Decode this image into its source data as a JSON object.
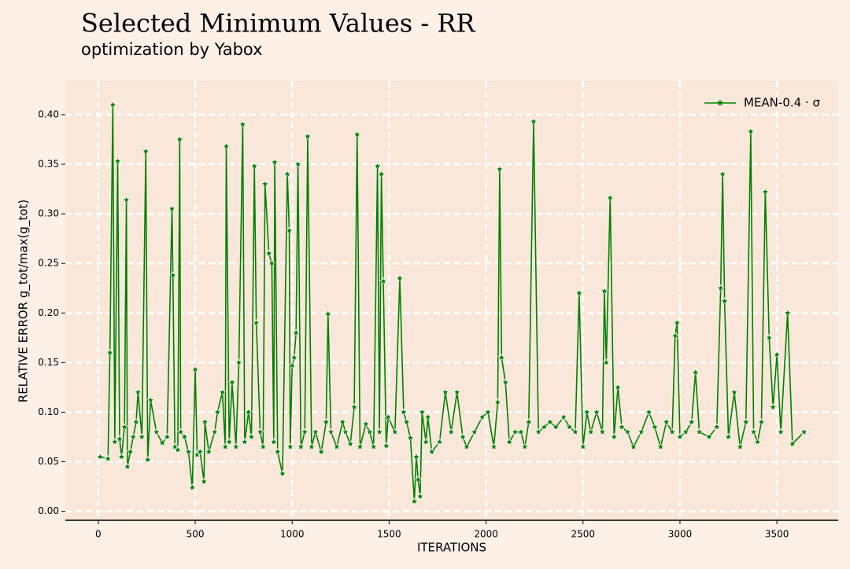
{
  "chart_data": {
    "type": "line",
    "title": "Selected Minimum Values - RR",
    "subtitle": "optimization by Yabox",
    "xlabel": "ITERATIONS",
    "ylabel": "RELATIVE ERROR g_tot/max(g_tot)",
    "legend": "upper right",
    "grid": true,
    "xlim": [
      -170,
      3816
    ],
    "ylim": [
      -0.009,
      0.434
    ],
    "xticks": [
      0,
      500,
      1000,
      1500,
      2000,
      2500,
      3000,
      3500
    ],
    "yticks": [
      {
        "value": 0,
        "label": "0.00"
      },
      {
        "value": 0.05,
        "label": "0.05"
      },
      {
        "value": 0.1,
        "label": "0.10"
      },
      {
        "value": 0.15,
        "label": "0.15"
      },
      {
        "value": 0.2,
        "label": "0.20"
      },
      {
        "value": 0.25,
        "label": "0.25"
      },
      {
        "value": 0.3,
        "label": "0.30"
      },
      {
        "value": 0.35,
        "label": "0.35"
      },
      {
        "value": 0.4,
        "label": "0.40"
      }
    ],
    "x": [
      10,
      50,
      60,
      75,
      85,
      100,
      110,
      120,
      135,
      145,
      150,
      165,
      180,
      195,
      205,
      225,
      245,
      255,
      270,
      300,
      330,
      355,
      380,
      385,
      395,
      410,
      420,
      425,
      445,
      465,
      485,
      500,
      510,
      525,
      545,
      550,
      570,
      600,
      615,
      640,
      655,
      660,
      675,
      690,
      710,
      725,
      745,
      755,
      775,
      790,
      805,
      815,
      835,
      850,
      860,
      880,
      895,
      905,
      910,
      925,
      950,
      975,
      985,
      990,
      1000,
      1010,
      1020,
      1030,
      1045,
      1065,
      1080,
      1100,
      1120,
      1150,
      1175,
      1185,
      1200,
      1230,
      1260,
      1275,
      1300,
      1320,
      1335,
      1350,
      1380,
      1400,
      1420,
      1440,
      1450,
      1460,
      1470,
      1485,
      1495,
      1530,
      1555,
      1575,
      1590,
      1610,
      1630,
      1640,
      1650,
      1660,
      1670,
      1690,
      1700,
      1720,
      1760,
      1790,
      1820,
      1850,
      1880,
      1900,
      1940,
      1980,
      2010,
      2040,
      2060,
      2070,
      2080,
      2100,
      2120,
      2150,
      2180,
      2200,
      2220,
      2245,
      2270,
      2300,
      2330,
      2360,
      2400,
      2430,
      2460,
      2480,
      2500,
      2520,
      2540,
      2570,
      2600,
      2610,
      2620,
      2640,
      2660,
      2680,
      2700,
      2730,
      2760,
      2800,
      2840,
      2870,
      2900,
      2930,
      2960,
      2975,
      2985,
      3000,
      3030,
      3060,
      3080,
      3100,
      3150,
      3190,
      3210,
      3220,
      3230,
      3250,
      3280,
      3310,
      3340,
      3365,
      3380,
      3400,
      3420,
      3440,
      3460,
      3480,
      3500,
      3520,
      3555,
      3580,
      3640
    ],
    "series": [
      {
        "name": "MEAN-0.4 · σ",
        "color": "#008000",
        "values": [
          0.055,
          0.053,
          0.16,
          0.41,
          0.07,
          0.353,
          0.073,
          0.055,
          0.085,
          0.314,
          0.045,
          0.06,
          0.075,
          0.09,
          0.12,
          0.075,
          0.363,
          0.052,
          0.112,
          0.08,
          0.069,
          0.075,
          0.305,
          0.238,
          0.065,
          0.062,
          0.375,
          0.08,
          0.075,
          0.06,
          0.024,
          0.143,
          0.057,
          0.06,
          0.03,
          0.09,
          0.06,
          0.08,
          0.1,
          0.12,
          0.065,
          0.368,
          0.07,
          0.13,
          0.065,
          0.15,
          0.39,
          0.07,
          0.1,
          0.075,
          0.348,
          0.19,
          0.08,
          0.065,
          0.33,
          0.26,
          0.25,
          0.07,
          0.352,
          0.06,
          0.038,
          0.34,
          0.283,
          0.065,
          0.147,
          0.155,
          0.18,
          0.35,
          0.065,
          0.08,
          0.378,
          0.065,
          0.08,
          0.06,
          0.09,
          0.199,
          0.08,
          0.065,
          0.09,
          0.08,
          0.068,
          0.105,
          0.38,
          0.065,
          0.088,
          0.08,
          0.065,
          0.348,
          0.08,
          0.34,
          0.232,
          0.066,
          0.095,
          0.08,
          0.235,
          0.1,
          0.09,
          0.074,
          0.01,
          0.055,
          0.032,
          0.015,
          0.1,
          0.07,
          0.095,
          0.06,
          0.07,
          0.12,
          0.08,
          0.12,
          0.075,
          0.065,
          0.08,
          0.095,
          0.1,
          0.065,
          0.11,
          0.345,
          0.155,
          0.13,
          0.07,
          0.08,
          0.08,
          0.065,
          0.09,
          0.393,
          0.08,
          0.085,
          0.09,
          0.085,
          0.095,
          0.085,
          0.08,
          0.22,
          0.065,
          0.1,
          0.08,
          0.1,
          0.08,
          0.222,
          0.15,
          0.316,
          0.075,
          0.125,
          0.085,
          0.08,
          0.065,
          0.08,
          0.1,
          0.085,
          0.065,
          0.09,
          0.08,
          0.177,
          0.19,
          0.075,
          0.08,
          0.09,
          0.14,
          0.08,
          0.075,
          0.085,
          0.225,
          0.34,
          0.212,
          0.075,
          0.12,
          0.065,
          0.09,
          0.383,
          0.08,
          0.07,
          0.09,
          0.322,
          0.175,
          0.105,
          0.158,
          0.08,
          0.2,
          0.068,
          0.08
        ]
      }
    ]
  }
}
